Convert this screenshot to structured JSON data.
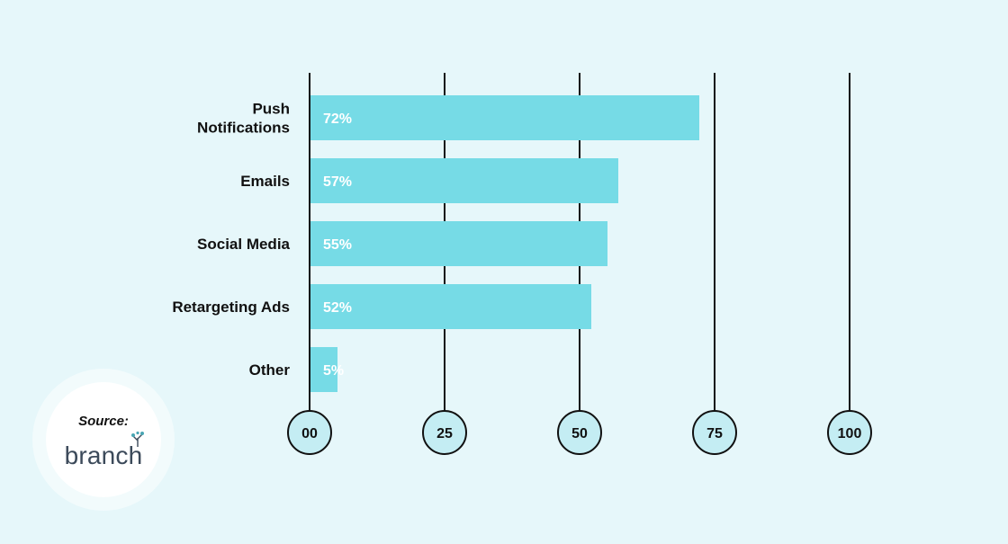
{
  "chart_data": {
    "type": "bar",
    "orientation": "horizontal",
    "categories": [
      "Push\nNotifications",
      "Emails",
      "Social Media",
      "Retargeting Ads",
      "Other"
    ],
    "values": [
      72,
      57,
      55,
      52,
      5
    ],
    "value_labels": [
      "72%",
      "57%",
      "55%",
      "52%",
      "5%"
    ],
    "xticks": [
      "00",
      "25",
      "50",
      "75",
      "100"
    ],
    "xtick_values": [
      0,
      25,
      50,
      75,
      100
    ],
    "xlim": [
      0,
      100
    ],
    "grid": true,
    "bar_color": "#76dbe6",
    "tick_circle_color": "#c4edf3"
  },
  "source": {
    "label": "Source:",
    "brand": "branch",
    "brand_color": "#3c4a5a",
    "brand_accent": "#4aa6b4"
  }
}
